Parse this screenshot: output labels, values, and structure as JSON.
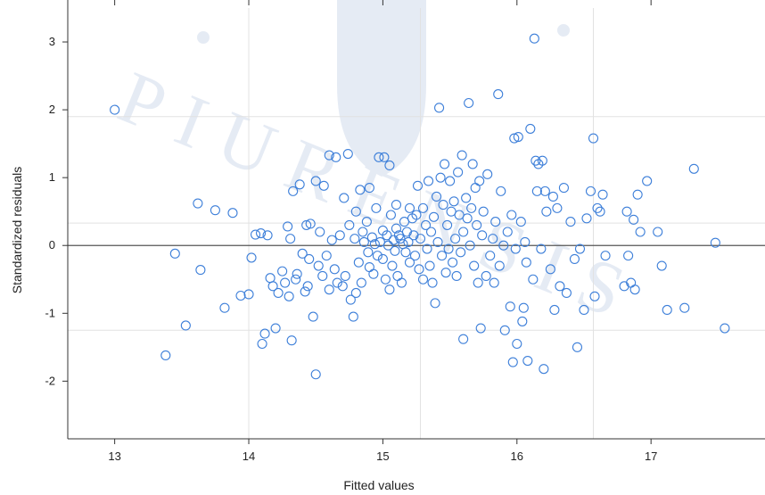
{
  "chart_data": {
    "type": "scatter",
    "xlabel": "Fitted values",
    "ylabel": "Standardized residuals",
    "xlim": [
      12.65,
      17.85
    ],
    "ylim": [
      -2.85,
      3.5
    ],
    "xticks": [
      13,
      14,
      15,
      16,
      17
    ],
    "yticks": [
      -2,
      -1,
      0,
      1,
      2,
      3
    ],
    "reference_line_y": 0,
    "grid_x": [
      14.0,
      15.28,
      16.57
    ],
    "grid_y": [
      -1.25,
      0.33,
      1.9
    ],
    "colors": {
      "points": "#3d7fd9",
      "axis": "#333333",
      "grid": "#e2e2e2",
      "zero_line": "#555555"
    },
    "watermark": "PIURENSIS",
    "points": [
      [
        13.0,
        2.0
      ],
      [
        13.38,
        -1.62
      ],
      [
        13.45,
        -0.12
      ],
      [
        13.53,
        -1.18
      ],
      [
        13.62,
        0.62
      ],
      [
        13.64,
        -0.36
      ],
      [
        13.75,
        0.52
      ],
      [
        13.82,
        -0.92
      ],
      [
        13.88,
        0.48
      ],
      [
        13.94,
        -0.74
      ],
      [
        14.0,
        -0.72
      ],
      [
        14.02,
        -0.18
      ],
      [
        14.05,
        0.16
      ],
      [
        14.09,
        0.18
      ],
      [
        14.1,
        -1.45
      ],
      [
        14.12,
        -1.3
      ],
      [
        14.14,
        0.15
      ],
      [
        14.16,
        -0.48
      ],
      [
        14.18,
        -0.6
      ],
      [
        14.2,
        -1.22
      ],
      [
        14.22,
        -0.7
      ],
      [
        14.25,
        -0.38
      ],
      [
        14.27,
        -0.55
      ],
      [
        14.29,
        0.28
      ],
      [
        14.3,
        -0.75
      ],
      [
        14.31,
        0.1
      ],
      [
        14.32,
        -1.4
      ],
      [
        14.33,
        0.8
      ],
      [
        14.35,
        -0.5
      ],
      [
        14.36,
        -0.42
      ],
      [
        14.38,
        0.9
      ],
      [
        14.4,
        -0.12
      ],
      [
        14.42,
        -0.68
      ],
      [
        14.43,
        0.3
      ],
      [
        14.44,
        -0.6
      ],
      [
        14.45,
        -0.2
      ],
      [
        14.46,
        0.32
      ],
      [
        14.48,
        -1.05
      ],
      [
        14.5,
        -1.9
      ],
      [
        14.5,
        0.95
      ],
      [
        14.52,
        -0.3
      ],
      [
        14.53,
        0.2
      ],
      [
        14.55,
        -0.45
      ],
      [
        14.56,
        0.88
      ],
      [
        14.58,
        -0.15
      ],
      [
        14.6,
        1.33
      ],
      [
        14.6,
        -0.65
      ],
      [
        14.62,
        0.08
      ],
      [
        14.64,
        -0.35
      ],
      [
        14.65,
        1.3
      ],
      [
        14.66,
        -0.55
      ],
      [
        14.68,
        0.15
      ],
      [
        14.7,
        -0.6
      ],
      [
        14.71,
        0.7
      ],
      [
        14.72,
        -0.45
      ],
      [
        14.74,
        1.35
      ],
      [
        14.75,
        0.3
      ],
      [
        14.76,
        -0.8
      ],
      [
        14.78,
        -1.05
      ],
      [
        14.79,
        0.1
      ],
      [
        14.8,
        -0.7
      ],
      [
        14.8,
        0.5
      ],
      [
        14.82,
        -0.25
      ],
      [
        14.83,
        0.82
      ],
      [
        14.84,
        -0.55
      ],
      [
        14.85,
        0.2
      ],
      [
        14.86,
        0.05
      ],
      [
        14.88,
        0.35
      ],
      [
        14.89,
        -0.1
      ],
      [
        14.9,
        0.85
      ],
      [
        14.9,
        -0.32
      ],
      [
        14.92,
        0.12
      ],
      [
        14.93,
        -0.42
      ],
      [
        14.94,
        0.02
      ],
      [
        14.95,
        0.55
      ],
      [
        14.96,
        -0.15
      ],
      [
        14.97,
        1.3
      ],
      [
        14.98,
        0.05
      ],
      [
        15.0,
        -0.2
      ],
      [
        15.0,
        0.22
      ],
      [
        15.01,
        1.3
      ],
      [
        15.02,
        -0.5
      ],
      [
        15.03,
        0.15
      ],
      [
        15.04,
        0.0
      ],
      [
        15.05,
        1.18
      ],
      [
        15.05,
        -0.65
      ],
      [
        15.06,
        0.45
      ],
      [
        15.07,
        -0.3
      ],
      [
        15.08,
        0.08
      ],
      [
        15.09,
        -0.08
      ],
      [
        15.1,
        0.6
      ],
      [
        15.1,
        0.25
      ],
      [
        15.11,
        -0.45
      ],
      [
        15.12,
        0.15
      ],
      [
        15.13,
        0.1
      ],
      [
        15.14,
        -0.55
      ],
      [
        15.15,
        0.02
      ],
      [
        15.16,
        0.35
      ],
      [
        15.17,
        -0.1
      ],
      [
        15.18,
        0.2
      ],
      [
        15.19,
        0.05
      ],
      [
        15.2,
        -0.25
      ],
      [
        15.2,
        0.55
      ],
      [
        15.22,
        0.4
      ],
      [
        15.23,
        0.15
      ],
      [
        15.24,
        -0.15
      ],
      [
        15.25,
        0.45
      ],
      [
        15.26,
        0.88
      ],
      [
        15.27,
        -0.35
      ],
      [
        15.28,
        0.1
      ],
      [
        15.3,
        0.55
      ],
      [
        15.3,
        -0.5
      ],
      [
        15.32,
        0.3
      ],
      [
        15.33,
        -0.05
      ],
      [
        15.34,
        0.95
      ],
      [
        15.35,
        -0.3
      ],
      [
        15.36,
        0.2
      ],
      [
        15.37,
        -0.55
      ],
      [
        15.38,
        0.42
      ],
      [
        15.39,
        -0.85
      ],
      [
        15.4,
        0.72
      ],
      [
        15.41,
        0.05
      ],
      [
        15.42,
        2.03
      ],
      [
        15.43,
        1.0
      ],
      [
        15.44,
        -0.15
      ],
      [
        15.45,
        0.6
      ],
      [
        15.46,
        1.2
      ],
      [
        15.47,
        -0.4
      ],
      [
        15.48,
        0.3
      ],
      [
        15.49,
        -0.05
      ],
      [
        15.5,
        0.95
      ],
      [
        15.51,
        0.5
      ],
      [
        15.52,
        -0.25
      ],
      [
        15.53,
        0.65
      ],
      [
        15.54,
        0.1
      ],
      [
        15.55,
        -0.45
      ],
      [
        15.56,
        1.08
      ],
      [
        15.57,
        0.45
      ],
      [
        15.58,
        -0.1
      ],
      [
        15.59,
        1.33
      ],
      [
        15.6,
        0.2
      ],
      [
        15.6,
        -1.38
      ],
      [
        15.62,
        0.7
      ],
      [
        15.63,
        0.4
      ],
      [
        15.64,
        2.1
      ],
      [
        15.65,
        0.0
      ],
      [
        15.66,
        0.55
      ],
      [
        15.67,
        1.2
      ],
      [
        15.68,
        -0.3
      ],
      [
        15.69,
        0.85
      ],
      [
        15.7,
        0.3
      ],
      [
        15.71,
        -0.55
      ],
      [
        15.72,
        0.95
      ],
      [
        15.73,
        -1.22
      ],
      [
        15.74,
        0.15
      ],
      [
        15.75,
        0.5
      ],
      [
        15.77,
        -0.45
      ],
      [
        15.78,
        1.05
      ],
      [
        15.8,
        -0.15
      ],
      [
        15.82,
        0.1
      ],
      [
        15.83,
        -0.55
      ],
      [
        15.84,
        0.35
      ],
      [
        15.86,
        2.23
      ],
      [
        15.87,
        -0.3
      ],
      [
        15.88,
        0.8
      ],
      [
        15.9,
        0.0
      ],
      [
        15.91,
        -1.25
      ],
      [
        15.93,
        0.2
      ],
      [
        15.95,
        -0.9
      ],
      [
        15.96,
        0.45
      ],
      [
        15.97,
        -1.72
      ],
      [
        15.98,
        1.58
      ],
      [
        15.99,
        -0.05
      ],
      [
        16.0,
        -1.45
      ],
      [
        16.01,
        1.6
      ],
      [
        16.03,
        0.35
      ],
      [
        16.04,
        -1.12
      ],
      [
        16.05,
        -0.92
      ],
      [
        16.06,
        0.05
      ],
      [
        16.07,
        -0.25
      ],
      [
        16.08,
        -1.7
      ],
      [
        16.1,
        1.72
      ],
      [
        16.12,
        -0.5
      ],
      [
        16.13,
        3.05
      ],
      [
        16.14,
        1.25
      ],
      [
        16.15,
        0.8
      ],
      [
        16.16,
        1.2
      ],
      [
        16.18,
        -0.05
      ],
      [
        16.19,
        1.25
      ],
      [
        16.2,
        -1.82
      ],
      [
        16.21,
        0.8
      ],
      [
        16.22,
        0.5
      ],
      [
        16.25,
        -0.35
      ],
      [
        16.27,
        0.72
      ],
      [
        16.28,
        -0.95
      ],
      [
        16.3,
        0.55
      ],
      [
        16.32,
        -0.6
      ],
      [
        16.35,
        0.85
      ],
      [
        16.37,
        -0.7
      ],
      [
        16.4,
        0.35
      ],
      [
        16.43,
        -0.2
      ],
      [
        16.45,
        -1.5
      ],
      [
        16.47,
        -0.05
      ],
      [
        16.5,
        -0.95
      ],
      [
        16.52,
        0.4
      ],
      [
        16.55,
        0.8
      ],
      [
        16.57,
        1.58
      ],
      [
        16.58,
        -0.75
      ],
      [
        16.6,
        0.55
      ],
      [
        16.62,
        0.5
      ],
      [
        16.64,
        0.75
      ],
      [
        16.66,
        -0.15
      ],
      [
        16.8,
        -0.6
      ],
      [
        16.82,
        0.5
      ],
      [
        16.83,
        -0.15
      ],
      [
        16.85,
        -0.55
      ],
      [
        16.87,
        0.38
      ],
      [
        16.88,
        -0.65
      ],
      [
        16.9,
        0.75
      ],
      [
        16.92,
        0.2
      ],
      [
        16.97,
        0.95
      ],
      [
        17.05,
        0.2
      ],
      [
        17.08,
        -0.3
      ],
      [
        17.12,
        -0.95
      ],
      [
        17.25,
        -0.92
      ],
      [
        17.32,
        1.13
      ],
      [
        17.48,
        0.04
      ],
      [
        17.55,
        -1.22
      ]
    ]
  }
}
